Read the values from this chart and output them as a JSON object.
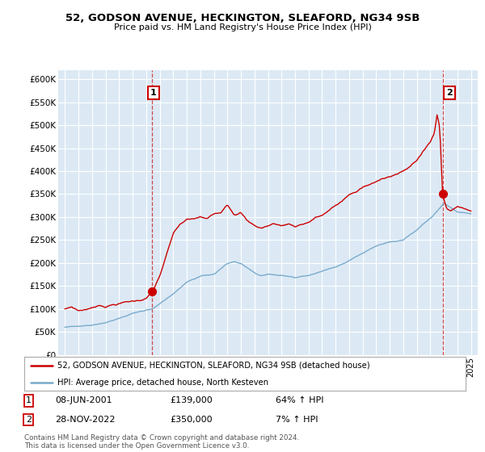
{
  "title": "52, GODSON AVENUE, HECKINGTON, SLEAFORD, NG34 9SB",
  "subtitle": "Price paid vs. HM Land Registry's House Price Index (HPI)",
  "ylabel_ticks": [
    "£0",
    "£50K",
    "£100K",
    "£150K",
    "£200K",
    "£250K",
    "£300K",
    "£350K",
    "£400K",
    "£450K",
    "£500K",
    "£550K",
    "£600K"
  ],
  "ytick_values": [
    0,
    50000,
    100000,
    150000,
    200000,
    250000,
    300000,
    350000,
    400000,
    450000,
    500000,
    550000,
    600000
  ],
  "red_line_color": "#cc0000",
  "blue_line_color": "#7aabcc",
  "marker1": {
    "year": 2001.44,
    "value": 139000,
    "label": "1",
    "date": "08-JUN-2001",
    "price": "£139,000",
    "note": "64% ↑ HPI"
  },
  "marker2": {
    "year": 2022.91,
    "value": 350000,
    "label": "2",
    "date": "28-NOV-2022",
    "price": "£350,000",
    "note": "7% ↑ HPI"
  },
  "legend_red": "52, GODSON AVENUE, HECKINGTON, SLEAFORD, NG34 9SB (detached house)",
  "legend_blue": "HPI: Average price, detached house, North Kesteven",
  "footer": "Contains HM Land Registry data © Crown copyright and database right 2024.\nThis data is licensed under the Open Government Licence v3.0.",
  "bg_color": "#ffffff",
  "plot_bg_color": "#dce9f5",
  "grid_color": "#ffffff"
}
